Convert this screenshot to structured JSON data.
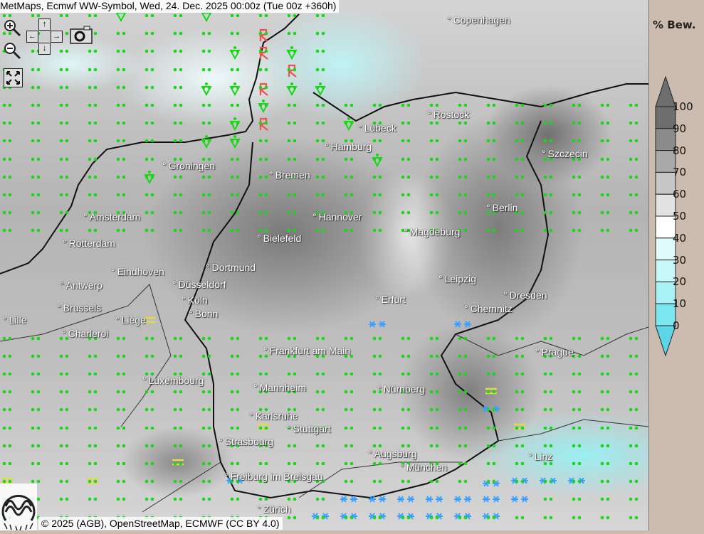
{
  "title": "MetMaps, Ecmwf WW-Symbol, Wed, 24. Dec. 2025 00:00z (Tue 00z +360h)",
  "copyright": "© 2025 (AGB), OpenStreetMap, ECMWF (CC BY 4.0)",
  "logo_text": "METMAPS",
  "controls": {
    "zoom_in": "zoom-in-icon",
    "zoom_out": "zoom-out-icon",
    "pan": "arrow-pad-icon",
    "snapshot": "camera-icon",
    "fullscreen": "fullscreen-icon",
    "arrows": {
      "up": "↑",
      "down": "↓",
      "left": "←",
      "right": "→"
    }
  },
  "legend": {
    "title": "% Bew.",
    "levels": [
      "100",
      "90",
      "80",
      "70",
      "60",
      "50",
      "40",
      "30",
      "20",
      "10",
      "0"
    ],
    "colors": [
      "#6e6e6e",
      "#8c8c8c",
      "#a9a9a9",
      "#c6c6c6",
      "#e2e2e2",
      "#ffffff",
      "#e0fbfc",
      "#c8f7f9",
      "#a8f1f5",
      "#7ce6ee",
      "#5ed6e8"
    ]
  },
  "symbols": {
    "drizzle": "••",
    "showers": "▽",
    "snow": "✱✱",
    "fog": "═",
    "thunderstorm": "Ꞩ"
  },
  "cities": [
    "Copenhagen",
    "Rostock",
    "Lübeck",
    "Hamburg",
    "Szczecin",
    "Groningen",
    "Bremen",
    "Amsterdam",
    "Hannover",
    "Berlin",
    "Rotterdam",
    "Bielefeld",
    "Magdeburg",
    "Eindhoven",
    "Dortmund",
    "Antwerp",
    "Düsseldorf",
    "Leipzig",
    "Dresden",
    "Brussels",
    "Köln",
    "Erfurt",
    "Chemnitz",
    "Lille",
    "Liège",
    "Bonn",
    "Charleroi",
    "Frankfurt am Main",
    "Prague",
    "Luxembourg",
    "Mannheim",
    "Nürnberg",
    "Karlsruhe",
    "Stuttgart",
    "Strasbourg",
    "Augsburg",
    "Linz",
    "München",
    "Freiburg im Breisgau",
    "Zürich"
  ]
}
